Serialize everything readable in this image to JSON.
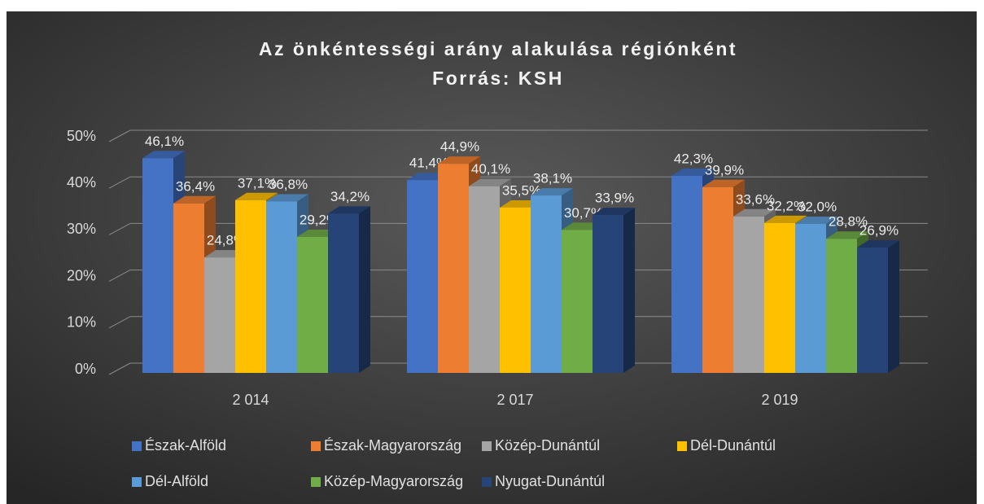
{
  "chart_data": {
    "type": "bar3d",
    "title": "Az önkéntességi arány alakulása régiónként",
    "subtitle": "Forrás: KSH",
    "categories": [
      "2 014",
      "2 017",
      "2 019"
    ],
    "ylim": [
      0,
      50
    ],
    "yticks": [
      {
        "value": 0,
        "label": "0%"
      },
      {
        "value": 10,
        "label": "10%"
      },
      {
        "value": 20,
        "label": "20%"
      },
      {
        "value": 30,
        "label": "30%"
      },
      {
        "value": 40,
        "label": "40%"
      },
      {
        "value": 50,
        "label": "50%"
      }
    ],
    "grid": true,
    "legend": "bottom",
    "series": [
      {
        "name": "Észak-Alföld",
        "color": "#4472c4",
        "values": [
          46.1,
          41.4,
          42.3
        ],
        "value_labels": [
          "46,1%",
          "41,4%",
          "42,3%"
        ]
      },
      {
        "name": "Észak-Magyarország",
        "color": "#ed7d31",
        "values": [
          36.4,
          44.9,
          39.9
        ],
        "value_labels": [
          "36,4%",
          "44,9%",
          "39,9%"
        ]
      },
      {
        "name": "Közép-Dunántúl",
        "color": "#a5a5a5",
        "values": [
          24.8,
          40.1,
          33.6
        ],
        "value_labels": [
          "24,8%",
          "40,1%",
          "33,6%"
        ]
      },
      {
        "name": "Dél-Dunántúl",
        "color": "#ffc000",
        "values": [
          37.1,
          35.5,
          32.2
        ],
        "value_labels": [
          "37,1%",
          "35,5%",
          "32,2%"
        ]
      },
      {
        "name": "Dél-Alföld",
        "color": "#5b9bd5",
        "values": [
          36.8,
          38.1,
          32.0
        ],
        "value_labels": [
          "36,8%",
          "38,1%",
          "32,0%"
        ]
      },
      {
        "name": "Közép-Magyarország",
        "color": "#70ad47",
        "values": [
          29.2,
          30.7,
          28.8
        ],
        "value_labels": [
          "29,2%",
          "30,7%",
          "28,8%"
        ]
      },
      {
        "name": "Nyugat-Dunántúl",
        "color": "#264478",
        "values": [
          34.2,
          33.9,
          26.9
        ],
        "value_labels": [
          "34,2%",
          "33,9%",
          "26,9%"
        ]
      }
    ]
  }
}
